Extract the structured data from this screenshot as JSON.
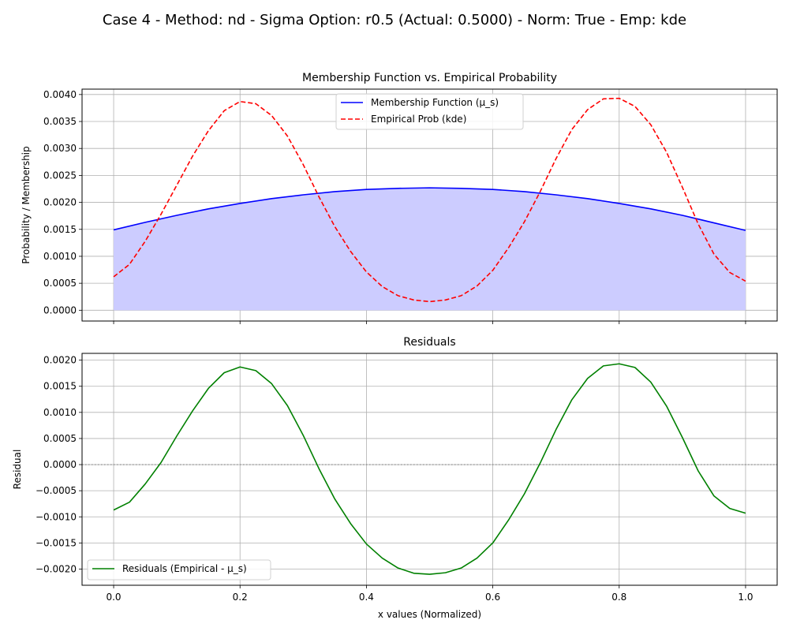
{
  "figure": {
    "suptitle": "Case 4 - Method: nd - Sigma Option: r0.5 (Actual: 0.5000) - Norm: True - Emp: kde"
  },
  "colors": {
    "membership": "#0000ff",
    "membership_fill": "#ccccff",
    "empirical": "#ff0000",
    "residual": "#008000",
    "grid": "#b0b0b0",
    "zero_line": "#808080"
  },
  "chart_data": [
    {
      "type": "line",
      "title": "Membership Function vs. Empirical Probability",
      "xlabel": "",
      "ylabel": "Probability / Membership",
      "xlim": [
        -0.05,
        1.05
      ],
      "ylim": [
        -0.0002,
        0.0041
      ],
      "xticks": [
        0.0,
        0.2,
        0.4,
        0.6,
        0.8,
        1.0
      ],
      "xtick_labels_visible": false,
      "yticks": [
        0.0,
        0.0005,
        0.001,
        0.0015,
        0.002,
        0.0025,
        0.003,
        0.0035,
        0.004
      ],
      "ytick_labels": [
        "0.0000",
        "0.0005",
        "0.0010",
        "0.0015",
        "0.0020",
        "0.0025",
        "0.0030",
        "0.0035",
        "0.0040"
      ],
      "grid": true,
      "legend_position": "upper center",
      "series": [
        {
          "name": "Membership Function (μ_s)",
          "style": "solid",
          "color": "#0000ff",
          "fill_to_zero": true,
          "x": [
            0.0,
            0.05,
            0.1,
            0.15,
            0.2,
            0.25,
            0.3,
            0.35,
            0.4,
            0.45,
            0.5,
            0.55,
            0.6,
            0.65,
            0.7,
            0.75,
            0.8,
            0.85,
            0.9,
            0.95,
            1.0
          ],
          "y": [
            0.00149,
            0.00163,
            0.00176,
            0.00188,
            0.00198,
            0.00207,
            0.00214,
            0.0022,
            0.00224,
            0.00226,
            0.00227,
            0.00226,
            0.00224,
            0.0022,
            0.00214,
            0.00207,
            0.00198,
            0.00188,
            0.00176,
            0.00162,
            0.00148
          ]
        },
        {
          "name": "Empirical Prob (kde)",
          "style": "dashed",
          "color": "#ff0000",
          "fill_to_zero": false,
          "x": [
            0.0,
            0.025,
            0.05,
            0.075,
            0.1,
            0.125,
            0.15,
            0.175,
            0.2,
            0.225,
            0.25,
            0.275,
            0.3,
            0.325,
            0.35,
            0.375,
            0.4,
            0.425,
            0.45,
            0.475,
            0.5,
            0.525,
            0.55,
            0.575,
            0.6,
            0.625,
            0.65,
            0.675,
            0.7,
            0.725,
            0.75,
            0.775,
            0.8,
            0.825,
            0.85,
            0.875,
            0.9,
            0.925,
            0.95,
            0.975,
            1.0
          ],
          "y": [
            0.00062,
            0.00085,
            0.00128,
            0.00178,
            0.00232,
            0.00286,
            0.00333,
            0.0037,
            0.00387,
            0.00383,
            0.00361,
            0.00323,
            0.0027,
            0.0021,
            0.00155,
            0.00109,
            0.00071,
            0.00044,
            0.00027,
            0.00019,
            0.00016,
            0.00019,
            0.00027,
            0.00045,
            0.00074,
            0.00116,
            0.00164,
            0.0022,
            0.00281,
            0.00335,
            0.00372,
            0.00392,
            0.00393,
            0.00378,
            0.00344,
            0.00293,
            0.00228,
            0.0016,
            0.00104,
            0.0007,
            0.00054
          ]
        }
      ]
    },
    {
      "type": "line",
      "title": "Residuals",
      "xlabel": "x values (Normalized)",
      "ylabel": "Residual",
      "xlim": [
        -0.05,
        1.05
      ],
      "ylim": [
        -0.00231,
        0.00213
      ],
      "xticks": [
        0.0,
        0.2,
        0.4,
        0.6,
        0.8,
        1.0
      ],
      "xtick_labels": [
        "0.0",
        "0.2",
        "0.4",
        "0.6",
        "0.8",
        "1.0"
      ],
      "yticks": [
        -0.002,
        -0.0015,
        -0.001,
        -0.0005,
        0.0,
        0.0005,
        0.001,
        0.0015,
        0.002
      ],
      "ytick_labels": [
        "−0.0020",
        "−0.0015",
        "−0.0010",
        "−0.0005",
        "0.0000",
        "0.0005",
        "0.0010",
        "0.0015",
        "0.0020"
      ],
      "grid": true,
      "zero_reference_line": 0.0,
      "legend_position": "lower left",
      "series": [
        {
          "name": "Residuals (Empirical - μ_s)",
          "style": "solid",
          "color": "#008000",
          "x": [
            0.0,
            0.025,
            0.05,
            0.075,
            0.1,
            0.125,
            0.15,
            0.175,
            0.2,
            0.225,
            0.25,
            0.275,
            0.3,
            0.325,
            0.35,
            0.375,
            0.4,
            0.425,
            0.45,
            0.475,
            0.5,
            0.525,
            0.55,
            0.575,
            0.6,
            0.625,
            0.65,
            0.675,
            0.7,
            0.725,
            0.75,
            0.775,
            0.8,
            0.825,
            0.85,
            0.875,
            0.9,
            0.925,
            0.95,
            0.975,
            1.0
          ],
          "y": [
            -0.00087,
            -0.00072,
            -0.00037,
            4e-05,
            0.00055,
            0.00103,
            0.00146,
            0.00176,
            0.00187,
            0.0018,
            0.00155,
            0.00113,
            0.00056,
            -8e-05,
            -0.00066,
            -0.00113,
            -0.00152,
            -0.00179,
            -0.00198,
            -0.00208,
            -0.0021,
            -0.00207,
            -0.00198,
            -0.00179,
            -0.0015,
            -0.00106,
            -0.00056,
            3e-05,
            0.00067,
            0.00124,
            0.00165,
            0.00189,
            0.00193,
            0.00186,
            0.00158,
            0.00112,
            0.00052,
            -0.00012,
            -0.0006,
            -0.00084,
            -0.00093
          ]
        }
      ]
    }
  ]
}
